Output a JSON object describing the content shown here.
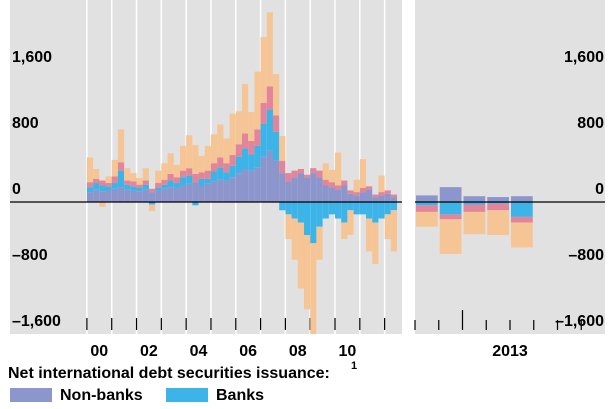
{
  "chart_data": [
    {
      "type": "bar",
      "stacked": true,
      "legend_title": "Net international debt securities issuance:",
      "legend_note": "1",
      "x": [
        2000.125,
        2000.375,
        2000.625,
        2000.875,
        2001.125,
        2001.375,
        2001.625,
        2001.875,
        2002.125,
        2002.375,
        2002.625,
        2002.875,
        2003.125,
        2003.375,
        2003.625,
        2003.875,
        2004.125,
        2004.375,
        2004.625,
        2004.875,
        2005.125,
        2005.375,
        2005.625,
        2005.875,
        2006.125,
        2006.375,
        2006.625,
        2006.875,
        2007.125,
        2007.375,
        2007.625,
        2007.875,
        2008.125,
        2008.375,
        2008.625,
        2008.875,
        2009.125,
        2009.375,
        2009.625,
        2009.875,
        2010.125,
        2010.375,
        2010.625,
        2010.875,
        2011.125,
        2011.375,
        2011.625,
        2011.875,
        2012.125,
        2012.375
      ],
      "series": [
        {
          "name": "Non-banks",
          "color": "#8c96cc",
          "values": [
            120,
            150,
            130,
            140,
            160,
            180,
            150,
            140,
            130,
            150,
            120,
            140,
            160,
            180,
            170,
            200,
            220,
            240,
            200,
            220,
            250,
            270,
            260,
            300,
            350,
            400,
            380,
            420,
            550,
            620,
            500,
            350,
            250,
            300,
            350,
            300,
            350,
            300,
            200,
            180,
            150,
            200,
            100,
            80,
            120,
            150,
            60,
            80,
            100,
            60
          ]
        },
        {
          "name": "Banks",
          "color": "#3db4e8",
          "values": [
            60,
            80,
            70,
            50,
            70,
            200,
            60,
            50,
            40,
            60,
            -30,
            30,
            50,
            80,
            60,
            100,
            100,
            -40,
            80,
            60,
            120,
            150,
            100,
            140,
            200,
            250,
            200,
            260,
            400,
            500,
            350,
            -100,
            -150,
            -200,
            -250,
            -400,
            -500,
            -300,
            -200,
            -150,
            -200,
            -250,
            -100,
            -150,
            -150,
            -200,
            -250,
            -200,
            -150,
            -100
          ]
        },
        {
          "color": "#e2849a",
          "values": [
            60,
            50,
            60,
            40,
            80,
            100,
            50,
            60,
            40,
            50,
            40,
            60,
            60,
            80,
            70,
            80,
            90,
            100,
            80,
            100,
            100,
            120,
            110,
            130,
            150,
            180,
            160,
            200,
            250,
            280,
            200,
            150,
            100,
            80,
            50,
            30,
            60,
            80,
            70,
            60,
            50,
            60,
            40,
            40,
            50,
            40,
            30,
            40,
            40,
            30
          ]
        },
        {
          "color": "#f5c596",
          "values": [
            300,
            120,
            -60,
            80,
            200,
            400,
            150,
            100,
            80,
            150,
            -80,
            150,
            200,
            250,
            150,
            300,
            400,
            350,
            200,
            300,
            350,
            400,
            300,
            500,
            400,
            600,
            350,
            700,
            800,
            900,
            500,
            300,
            -300,
            -500,
            -800,
            -900,
            -1100,
            -400,
            200,
            150,
            400,
            -200,
            -300,
            150,
            350,
            -400,
            -500,
            200,
            -300,
            -500
          ]
        }
      ],
      "xlim": [
        1996.9,
        2012.7
      ],
      "xticks": [
        {
          "value": 2000.5,
          "label": "00"
        },
        {
          "value": 2002.5,
          "label": "02"
        },
        {
          "value": 2004.5,
          "label": "04"
        },
        {
          "value": 2006.5,
          "label": "06"
        },
        {
          "value": 2008.5,
          "label": "08"
        },
        {
          "value": 2010.5,
          "label": "10"
        }
      ],
      "xminor_ticks": [
        2000,
        2001,
        2002,
        2003,
        2004,
        2005,
        2006,
        2007,
        2008,
        2009,
        2010,
        2011,
        2012
      ],
      "ylim": [
        -1600,
        2400
      ],
      "yticks": [
        {
          "value": -1600,
          "label": "–1,600"
        },
        {
          "value": -800,
          "label": "–800"
        },
        0,
        800,
        {
          "value": 1600,
          "label": "1,600"
        }
      ]
    },
    {
      "type": "bar",
      "stacked": true,
      "categories": [
        null,
        null,
        null,
        null,
        null
      ],
      "xlabel": "2013",
      "series": [
        {
          "color": "#8c96cc",
          "values": [
            80,
            180,
            70,
            60,
            70
          ]
        },
        {
          "color": "#3db4e8",
          "values": [
            -40,
            -150,
            -30,
            -20,
            -180
          ]
        },
        {
          "color": "#e2849a",
          "values": [
            -80,
            -60,
            -90,
            -80,
            -70
          ]
        },
        {
          "color": "#f5c596",
          "values": [
            -180,
            -420,
            -270,
            -300,
            -300
          ]
        }
      ],
      "ylim": [
        -1600,
        2400
      ],
      "yticks": [
        {
          "value": -1600,
          "label": "–1,600"
        },
        {
          "value": -800,
          "label": "–800"
        },
        0,
        800,
        {
          "value": 1600,
          "label": "1,600"
        }
      ]
    }
  ]
}
